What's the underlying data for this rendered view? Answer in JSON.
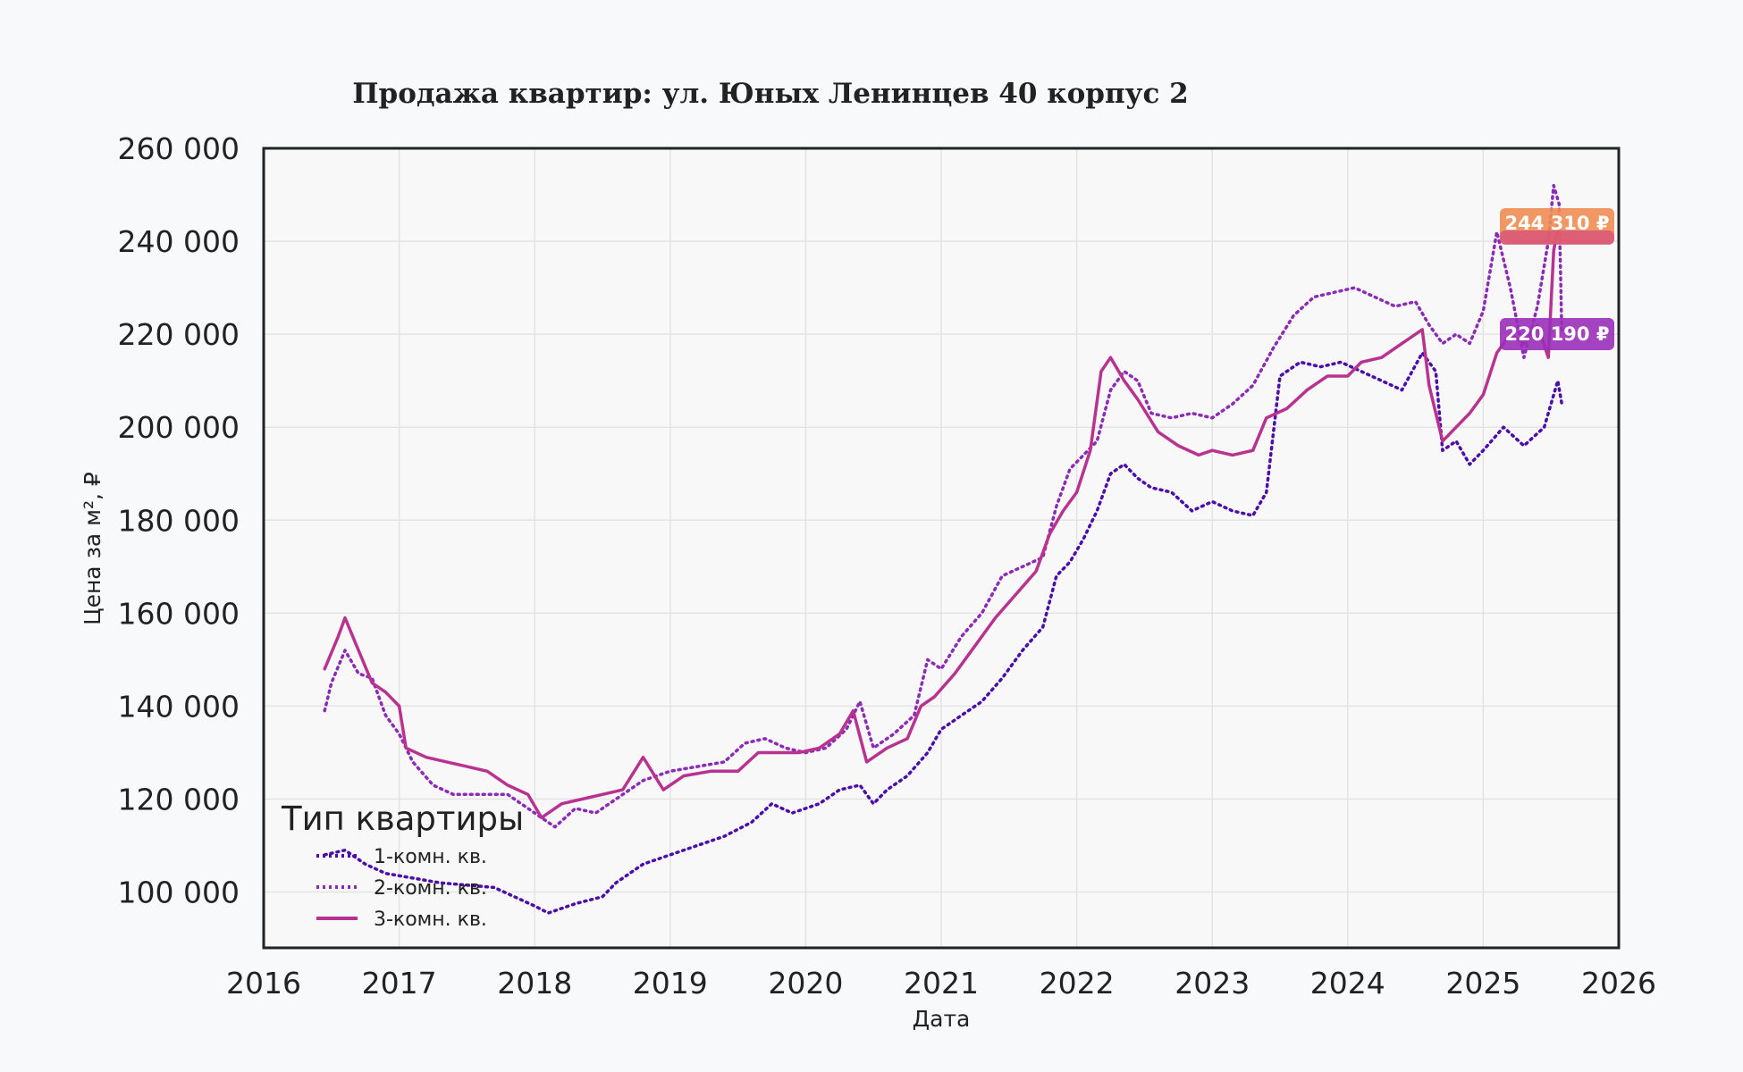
{
  "chart_data": {
    "type": "line",
    "title": "Продажа квартир: ул. Юных Ленинцев 40 корпус 2",
    "xlabel": "Дата",
    "ylabel": "Цена за м², ₽",
    "xlim": [
      2016,
      2026
    ],
    "ylim": [
      88000,
      260000
    ],
    "x_ticks": [
      2016,
      2017,
      2018,
      2019,
      2020,
      2021,
      2022,
      2023,
      2024,
      2025,
      2026
    ],
    "x_tick_labels": [
      "2016",
      "2017",
      "2018",
      "2019",
      "2020",
      "2021",
      "2022",
      "2023",
      "2024",
      "2025",
      "2026"
    ],
    "y_ticks": [
      100000,
      120000,
      140000,
      160000,
      180000,
      200000,
      220000,
      240000,
      260000
    ],
    "y_tick_labels": [
      "100 000",
      "120 000",
      "140 000",
      "160 000",
      "180 000",
      "200 000",
      "220 000",
      "240 000",
      "260 000"
    ],
    "grid": true,
    "legend": {
      "title": "Тип квартиры",
      "placement": "lower-left",
      "entries": [
        "1-комн. кв.",
        "2-комн. кв.",
        "3-комн. кв."
      ]
    },
    "series": [
      {
        "name": "1-комн. кв.",
        "color": "#4b0ea8",
        "style": "dotted",
        "points": [
          [
            2016.45,
            108000
          ],
          [
            2016.6,
            109000
          ],
          [
            2016.75,
            106000
          ],
          [
            2016.9,
            104000
          ],
          [
            2017.1,
            103000
          ],
          [
            2017.3,
            102000
          ],
          [
            2017.5,
            101500
          ],
          [
            2017.7,
            101000
          ],
          [
            2017.85,
            99000
          ],
          [
            2018.0,
            97000
          ],
          [
            2018.1,
            95500
          ],
          [
            2018.3,
            97500
          ],
          [
            2018.5,
            99000
          ],
          [
            2018.6,
            102000
          ],
          [
            2018.8,
            106000
          ],
          [
            2019.0,
            108000
          ],
          [
            2019.2,
            110000
          ],
          [
            2019.4,
            112000
          ],
          [
            2019.6,
            115000
          ],
          [
            2019.75,
            119000
          ],
          [
            2019.9,
            117000
          ],
          [
            2020.1,
            119000
          ],
          [
            2020.25,
            122000
          ],
          [
            2020.4,
            123000
          ],
          [
            2020.5,
            119000
          ],
          [
            2020.6,
            122000
          ],
          [
            2020.75,
            125000
          ],
          [
            2020.9,
            130000
          ],
          [
            2021.0,
            135000
          ],
          [
            2021.15,
            138000
          ],
          [
            2021.3,
            141000
          ],
          [
            2021.45,
            146000
          ],
          [
            2021.6,
            152000
          ],
          [
            2021.75,
            157000
          ],
          [
            2021.85,
            168000
          ],
          [
            2021.95,
            171000
          ],
          [
            2022.05,
            176000
          ],
          [
            2022.15,
            182000
          ],
          [
            2022.25,
            190000
          ],
          [
            2022.35,
            192000
          ],
          [
            2022.45,
            189000
          ],
          [
            2022.55,
            187000
          ],
          [
            2022.7,
            186000
          ],
          [
            2022.85,
            182000
          ],
          [
            2023.0,
            184000
          ],
          [
            2023.15,
            182000
          ],
          [
            2023.3,
            181000
          ],
          [
            2023.4,
            186000
          ],
          [
            2023.5,
            211000
          ],
          [
            2023.65,
            214000
          ],
          [
            2023.8,
            213000
          ],
          [
            2023.95,
            214000
          ],
          [
            2024.1,
            212000
          ],
          [
            2024.25,
            210000
          ],
          [
            2024.4,
            208000
          ],
          [
            2024.55,
            216000
          ],
          [
            2024.65,
            212000
          ],
          [
            2024.7,
            195000
          ],
          [
            2024.8,
            197000
          ],
          [
            2024.9,
            192000
          ],
          [
            2025.0,
            195000
          ],
          [
            2025.15,
            200000
          ],
          [
            2025.3,
            196000
          ],
          [
            2025.45,
            200000
          ],
          [
            2025.55,
            210000
          ],
          [
            2025.58,
            205000
          ]
        ]
      },
      {
        "name": "2-комн. кв.",
        "color": "#8c2bb5",
        "style": "dotted",
        "points": [
          [
            2016.45,
            139000
          ],
          [
            2016.5,
            145000
          ],
          [
            2016.6,
            152000
          ],
          [
            2016.7,
            147000
          ],
          [
            2016.8,
            146000
          ],
          [
            2016.9,
            138000
          ],
          [
            2017.0,
            134000
          ],
          [
            2017.1,
            128000
          ],
          [
            2017.25,
            123000
          ],
          [
            2017.4,
            121000
          ],
          [
            2017.6,
            121000
          ],
          [
            2017.8,
            121000
          ],
          [
            2018.0,
            117000
          ],
          [
            2018.15,
            114000
          ],
          [
            2018.3,
            118000
          ],
          [
            2018.45,
            117000
          ],
          [
            2018.6,
            120000
          ],
          [
            2018.8,
            124000
          ],
          [
            2019.0,
            126000
          ],
          [
            2019.2,
            127000
          ],
          [
            2019.4,
            128000
          ],
          [
            2019.55,
            132000
          ],
          [
            2019.7,
            133000
          ],
          [
            2019.85,
            131000
          ],
          [
            2020.0,
            130000
          ],
          [
            2020.15,
            131000
          ],
          [
            2020.3,
            135000
          ],
          [
            2020.4,
            141000
          ],
          [
            2020.5,
            131000
          ],
          [
            2020.65,
            134000
          ],
          [
            2020.8,
            138000
          ],
          [
            2020.9,
            150000
          ],
          [
            2021.0,
            148000
          ],
          [
            2021.15,
            155000
          ],
          [
            2021.3,
            160000
          ],
          [
            2021.45,
            168000
          ],
          [
            2021.6,
            170000
          ],
          [
            2021.75,
            172000
          ],
          [
            2021.85,
            183000
          ],
          [
            2021.95,
            191000
          ],
          [
            2022.05,
            194000
          ],
          [
            2022.15,
            197000
          ],
          [
            2022.25,
            208000
          ],
          [
            2022.35,
            212000
          ],
          [
            2022.45,
            210000
          ],
          [
            2022.55,
            203000
          ],
          [
            2022.7,
            202000
          ],
          [
            2022.85,
            203000
          ],
          [
            2023.0,
            202000
          ],
          [
            2023.15,
            205000
          ],
          [
            2023.3,
            209000
          ],
          [
            2023.45,
            217000
          ],
          [
            2023.6,
            224000
          ],
          [
            2023.75,
            228000
          ],
          [
            2023.9,
            229000
          ],
          [
            2024.05,
            230000
          ],
          [
            2024.2,
            228000
          ],
          [
            2024.35,
            226000
          ],
          [
            2024.5,
            227000
          ],
          [
            2024.6,
            222000
          ],
          [
            2024.7,
            218000
          ],
          [
            2024.8,
            220000
          ],
          [
            2024.9,
            218000
          ],
          [
            2025.0,
            225000
          ],
          [
            2025.1,
            242000
          ],
          [
            2025.2,
            230000
          ],
          [
            2025.3,
            215000
          ],
          [
            2025.4,
            226000
          ],
          [
            2025.48,
            240000
          ],
          [
            2025.52,
            252000
          ],
          [
            2025.56,
            248000
          ],
          [
            2025.58,
            220000
          ]
        ]
      },
      {
        "name": "3-комн. кв.",
        "color": "#b8328f",
        "style": "solid",
        "points": [
          [
            2016.45,
            148000
          ],
          [
            2016.55,
            155000
          ],
          [
            2016.6,
            159000
          ],
          [
            2016.7,
            152000
          ],
          [
            2016.8,
            145000
          ],
          [
            2016.9,
            143000
          ],
          [
            2017.0,
            140000
          ],
          [
            2017.05,
            131000
          ],
          [
            2017.2,
            129000
          ],
          [
            2017.35,
            128000
          ],
          [
            2017.5,
            127000
          ],
          [
            2017.65,
            126000
          ],
          [
            2017.8,
            123000
          ],
          [
            2017.95,
            121000
          ],
          [
            2018.05,
            116000
          ],
          [
            2018.2,
            119000
          ],
          [
            2018.35,
            120000
          ],
          [
            2018.5,
            121000
          ],
          [
            2018.65,
            122000
          ],
          [
            2018.8,
            129000
          ],
          [
            2018.95,
            122000
          ],
          [
            2019.1,
            125000
          ],
          [
            2019.3,
            126000
          ],
          [
            2019.5,
            126000
          ],
          [
            2019.65,
            130000
          ],
          [
            2019.8,
            130000
          ],
          [
            2019.95,
            130000
          ],
          [
            2020.1,
            131000
          ],
          [
            2020.25,
            134000
          ],
          [
            2020.35,
            139000
          ],
          [
            2020.45,
            128000
          ],
          [
            2020.6,
            131000
          ],
          [
            2020.75,
            133000
          ],
          [
            2020.85,
            140000
          ],
          [
            2020.95,
            142000
          ],
          [
            2021.1,
            147000
          ],
          [
            2021.25,
            153000
          ],
          [
            2021.4,
            159000
          ],
          [
            2021.55,
            164000
          ],
          [
            2021.7,
            169000
          ],
          [
            2021.8,
            177000
          ],
          [
            2021.9,
            182000
          ],
          [
            2022.0,
            186000
          ],
          [
            2022.1,
            195000
          ],
          [
            2022.18,
            212000
          ],
          [
            2022.25,
            215000
          ],
          [
            2022.35,
            210000
          ],
          [
            2022.45,
            206000
          ],
          [
            2022.6,
            199000
          ],
          [
            2022.75,
            196000
          ],
          [
            2022.9,
            194000
          ],
          [
            2023.0,
            195000
          ],
          [
            2023.15,
            194000
          ],
          [
            2023.3,
            195000
          ],
          [
            2023.4,
            202000
          ],
          [
            2023.55,
            204000
          ],
          [
            2023.7,
            208000
          ],
          [
            2023.85,
            211000
          ],
          [
            2024.0,
            211000
          ],
          [
            2024.1,
            214000
          ],
          [
            2024.25,
            215000
          ],
          [
            2024.4,
            218000
          ],
          [
            2024.55,
            221000
          ],
          [
            2024.6,
            209000
          ],
          [
            2024.7,
            197000
          ],
          [
            2024.8,
            200000
          ],
          [
            2024.9,
            203000
          ],
          [
            2025.0,
            207000
          ],
          [
            2025.1,
            216000
          ],
          [
            2025.2,
            220000
          ],
          [
            2025.3,
            218000
          ],
          [
            2025.4,
            222000
          ],
          [
            2025.48,
            215000
          ],
          [
            2025.52,
            238000
          ],
          [
            2025.56,
            244310
          ]
        ]
      }
    ],
    "annotations": [
      {
        "text": "244 310 ₽",
        "value": 244310,
        "color": "#ef8c52"
      },
      {
        "text": "220 190 ₽",
        "value": 220190,
        "color": "#9a2fb8"
      }
    ]
  }
}
